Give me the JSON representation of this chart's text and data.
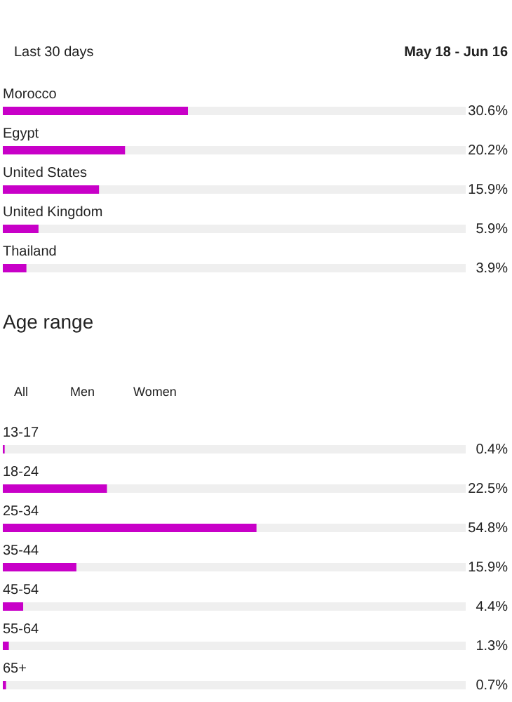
{
  "chart_data": [
    {
      "type": "bar",
      "orientation": "horizontal",
      "categories": [
        "Morocco",
        "Egypt",
        "United States",
        "United Kingdom",
        "Thailand"
      ],
      "values": [
        30.6,
        20.2,
        15.9,
        5.9,
        3.9
      ],
      "value_labels": [
        "30.6%",
        "20.2%",
        "15.9%",
        "5.9%",
        "3.9%"
      ],
      "color": "#c800c8",
      "tick_labels": false,
      "annotations": [
        "Last 30 days",
        "May 18 - Jun 16"
      ]
    },
    {
      "type": "bar",
      "orientation": "horizontal",
      "title": "Age range",
      "categories": [
        "13-17",
        "18-24",
        "25-34",
        "35-44",
        "45-54",
        "55-64",
        "65+"
      ],
      "values": [
        0.4,
        22.5,
        54.8,
        15.9,
        4.4,
        1.3,
        0.7
      ],
      "value_labels": [
        "0.4%",
        "22.5%",
        "54.8%",
        "15.9%",
        "4.4%",
        "1.3%",
        "0.7%"
      ],
      "color": "#c800c8",
      "tick_labels": false,
      "annotations": [
        "All",
        "Men",
        "Women"
      ]
    }
  ]
}
